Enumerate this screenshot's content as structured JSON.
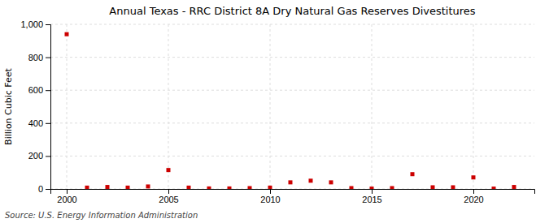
{
  "chart_data": {
    "type": "scatter",
    "title": "Annual Texas - RRC District 8A Dry Natural Gas Reserves Divestitures",
    "ylabel": "Billion Cubic Feet",
    "source": "Source: U.S. Energy Information Administration",
    "x": [
      2000,
      2001,
      2002,
      2003,
      2004,
      2005,
      2006,
      2007,
      2008,
      2009,
      2010,
      2011,
      2012,
      2013,
      2014,
      2015,
      2016,
      2017,
      2018,
      2019,
      2020,
      2021,
      2022
    ],
    "values": [
      940,
      8,
      12,
      8,
      15,
      115,
      8,
      3,
      3,
      5,
      8,
      40,
      50,
      40,
      5,
      2,
      5,
      90,
      10,
      10,
      70,
      2,
      12
    ],
    "color": "#cc0000",
    "marker": "square",
    "xlim": [
      1999.2,
      2023.0
    ],
    "xticks": [
      2000,
      2005,
      2010,
      2015,
      2020
    ],
    "ylim": [
      0,
      1000
    ],
    "yticks": [
      0,
      200,
      400,
      600,
      800,
      {
        "value": 1000,
        "label": "1,000"
      }
    ],
    "grid": true
  }
}
